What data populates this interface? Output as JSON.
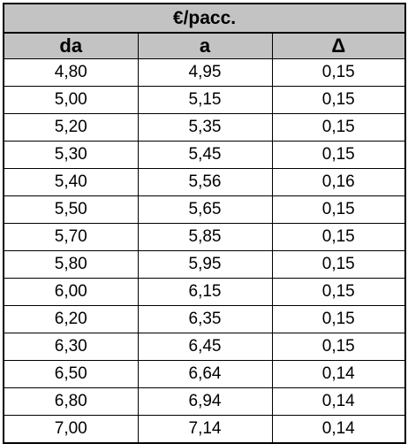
{
  "table": {
    "title": "€/pacc.",
    "headers": [
      "da",
      "a",
      "Δ"
    ],
    "rows": [
      [
        "4,80",
        "4,95",
        "0,15"
      ],
      [
        "5,00",
        "5,15",
        "0,15"
      ],
      [
        "5,20",
        "5,35",
        "0,15"
      ],
      [
        "5,30",
        "5,45",
        "0,15"
      ],
      [
        "5,40",
        "5,56",
        "0,16"
      ],
      [
        "5,50",
        "5,65",
        "0,15"
      ],
      [
        "5,70",
        "5,85",
        "0,15"
      ],
      [
        "5,80",
        "5,95",
        "0,15"
      ],
      [
        "6,00",
        "6,15",
        "0,15"
      ],
      [
        "6,20",
        "6,35",
        "0,15"
      ],
      [
        "6,30",
        "6,45",
        "0,15"
      ],
      [
        "6,50",
        "6,64",
        "0,14"
      ],
      [
        "6,80",
        "6,94",
        "0,14"
      ],
      [
        "7,00",
        "7,14",
        "0,14"
      ]
    ]
  },
  "colors": {
    "header_background": "#c3c3c3",
    "border": "#000000",
    "text": "#000000"
  }
}
